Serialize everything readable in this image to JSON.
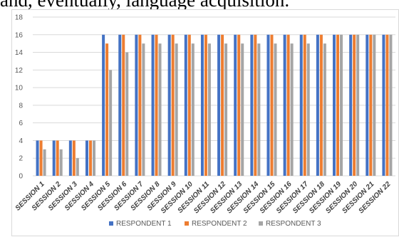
{
  "document": {
    "text_line": "and, eventually, language acquisition."
  },
  "chart_data": {
    "type": "bar",
    "title": "",
    "xlabel": "",
    "ylabel": "",
    "ylim": [
      0,
      18
    ],
    "yticks": [
      0,
      2,
      4,
      6,
      8,
      10,
      12,
      14,
      16,
      18
    ],
    "grid": true,
    "legend_position": "bottom",
    "categories": [
      "SESSION 1",
      "SESSION 2",
      "SESSION 3",
      "SESSION 4",
      "SESSION 5",
      "SESSION 6",
      "SESSION 7",
      "SESSION 8",
      "SESSION 9",
      "SESSION 10",
      "SESSION 11",
      "SESSION 12",
      "SESSION 13",
      "SESSION 14",
      "SESSION 15",
      "SESSION 16",
      "SESSION 17",
      "SESSION 18",
      "SESSION 19",
      "SESSION 20",
      "SESSION 21",
      "SESSION 22"
    ],
    "series": [
      {
        "name": "RESPONDENT 1",
        "color": "#4472c4",
        "values": [
          4,
          4,
          4,
          4,
          16,
          16,
          16,
          16,
          16,
          16,
          16,
          16,
          16,
          16,
          16,
          16,
          16,
          16,
          16,
          16,
          16,
          16
        ]
      },
      {
        "name": "RESPONDENT 2",
        "color": "#ed7d31",
        "values": [
          4,
          4,
          4,
          4,
          15,
          16,
          16,
          16,
          16,
          16,
          16,
          16,
          16,
          16,
          16,
          16,
          16,
          16,
          16,
          16,
          16,
          16
        ]
      },
      {
        "name": "RESPONDENT 3",
        "color": "#a5a5a5",
        "values": [
          3,
          3,
          2,
          4,
          12,
          14,
          15,
          15,
          15,
          15,
          15,
          15,
          15,
          15,
          15,
          15,
          15,
          15,
          16,
          16,
          16,
          16
        ]
      }
    ]
  }
}
